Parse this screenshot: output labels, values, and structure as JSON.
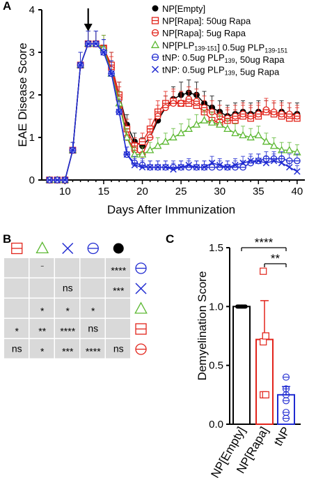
{
  "colors": {
    "black": "#000000",
    "red": "#e2231a",
    "green": "#5cb832",
    "blue": "#1f2ad1",
    "grey": "#d9d9d9"
  },
  "chart_data": [
    {
      "panel": "A",
      "type": "line",
      "xlabel": "Days After Immunization",
      "ylabel": "EAE Disease Score",
      "xlim": [
        7,
        41
      ],
      "ylim": [
        0,
        4
      ],
      "xticks": [
        10,
        15,
        20,
        25,
        30,
        35,
        40
      ],
      "yticks": [
        0,
        1,
        2,
        3,
        4
      ],
      "arrow_at_day": 13,
      "x": [
        8,
        9,
        10,
        11,
        12,
        13,
        14,
        15,
        16,
        17,
        18,
        19,
        20,
        21,
        22,
        23,
        24,
        25,
        26,
        27,
        28,
        29,
        30,
        31,
        32,
        33,
        34,
        35,
        36,
        37,
        38,
        39,
        40
      ],
      "series": [
        {
          "id": "s1",
          "color": "#000000",
          "marker": "dot",
          "legend": [
            {
              "t": "NP[Empty]"
            }
          ],
          "values": [
            0,
            0,
            0,
            0.7,
            2.7,
            3.2,
            3.2,
            3.0,
            2.7,
            2.0,
            1.3,
            0.9,
            0.8,
            1.0,
            1.4,
            1.7,
            1.9,
            2.0,
            2.05,
            2.0,
            1.8,
            1.7,
            1.6,
            1.5,
            1.55,
            1.6,
            1.55,
            1.6,
            1.6,
            1.55,
            1.6,
            1.55,
            1.55
          ]
        },
        {
          "id": "s2",
          "color": "#e2231a",
          "marker": "square",
          "legend": [
            {
              "t": "NP[Rapa]: 50ug Rapa"
            }
          ],
          "values": [
            0,
            0,
            0,
            0.7,
            2.7,
            3.2,
            3.2,
            3.1,
            2.7,
            2.0,
            1.2,
            0.8,
            0.9,
            1.2,
            1.6,
            1.8,
            1.85,
            1.8,
            1.8,
            1.75,
            1.6,
            1.4,
            1.35,
            1.4,
            1.4,
            1.5,
            1.45,
            1.5,
            1.6,
            1.55,
            1.5,
            1.45,
            1.45
          ]
        },
        {
          "id": "s3",
          "color": "#e2231a",
          "marker": "circle",
          "legend": [
            {
              "t": "NP[Rapa]: 5ug Rapa"
            }
          ],
          "values": [
            0,
            0,
            0,
            0.7,
            2.7,
            3.2,
            3.2,
            3.1,
            2.6,
            1.9,
            1.0,
            0.7,
            0.6,
            1.0,
            1.5,
            1.7,
            1.8,
            1.8,
            1.9,
            1.85,
            1.7,
            1.6,
            1.5,
            1.45,
            1.5,
            1.55,
            1.5,
            1.55,
            1.65,
            1.6,
            1.55,
            1.55,
            1.5
          ]
        },
        {
          "id": "s4",
          "color": "#5cb832",
          "marker": "triangle",
          "legend": [
            {
              "t": "NP[PLP"
            },
            {
              "t": "139-151",
              "sub": true
            },
            {
              "t": "] 0.5ug PLP"
            },
            {
              "t": "139-151",
              "sub": true
            }
          ],
          "values": [
            0,
            0,
            0,
            0.7,
            2.7,
            3.2,
            3.2,
            3.1,
            2.5,
            1.8,
            1.0,
            0.6,
            0.6,
            0.7,
            0.8,
            0.9,
            1.0,
            1.1,
            1.2,
            1.3,
            1.4,
            1.35,
            1.3,
            1.2,
            1.1,
            1.05,
            1.0,
            1.05,
            0.9,
            0.8,
            0.7,
            0.7,
            0.65
          ]
        },
        {
          "id": "s5",
          "color": "#1f2ad1",
          "marker": "circle",
          "legend": [
            {
              "t": "tNP: 0.5ug PLP"
            },
            {
              "t": "139",
              "sub": true
            },
            {
              "t": ", 50ug Rapa"
            }
          ],
          "values": [
            0,
            0,
            0,
            0.7,
            2.7,
            3.2,
            3.2,
            3.0,
            2.5,
            1.6,
            0.6,
            0.4,
            0.35,
            0.3,
            0.3,
            0.3,
            0.3,
            0.3,
            0.3,
            0.3,
            0.3,
            0.3,
            0.3,
            0.3,
            0.3,
            0.3,
            0.4,
            0.45,
            0.5,
            0.5,
            0.5,
            0.45,
            0.45
          ]
        },
        {
          "id": "s6",
          "color": "#1f2ad1",
          "marker": "x",
          "legend": [
            {
              "t": "tNP: 0.5ug PLP"
            },
            {
              "t": "139",
              "sub": true
            },
            {
              "t": ", 5ug Rapa"
            }
          ],
          "values": [
            0,
            0,
            0,
            0.7,
            2.7,
            3.2,
            3.2,
            3.0,
            2.5,
            1.6,
            0.6,
            0.35,
            0.3,
            0.3,
            0.3,
            0.3,
            0.25,
            0.3,
            0.35,
            0.3,
            0.3,
            0.4,
            0.35,
            0.3,
            0.35,
            0.4,
            0.45,
            0.45,
            0.4,
            0.45,
            0.4,
            0.3,
            0.2
          ]
        }
      ]
    },
    {
      "panel": "B",
      "type": "table",
      "header_markers": [
        "s2",
        "s4",
        "s6",
        "s5",
        "s1"
      ],
      "row_markers": [
        "s5",
        "s6",
        "s4",
        "s2",
        "s3"
      ],
      "cells": [
        [
          "",
          "",
          "",
          "",
          "****"
        ],
        [
          "",
          "",
          "ns",
          "",
          "***"
        ],
        [
          "",
          "*",
          "*",
          "*",
          ""
        ],
        [
          "*",
          "**",
          "****",
          "ns",
          ""
        ],
        [
          "ns",
          "*",
          "***",
          "****",
          "ns"
        ]
      ],
      "dash_cell": [
        0,
        1
      ]
    },
    {
      "panel": "C",
      "type": "bar",
      "ylabel": "Demyelination Score",
      "ylim": [
        0,
        1.5
      ],
      "yticks": [
        "0.0",
        "0.5",
        "1.0",
        "1.5"
      ],
      "categories": [
        "NP[Empty]",
        "NP[Rapa]",
        "tNP"
      ],
      "colors": [
        "#000000",
        "#e2231a",
        "#1f2ad1"
      ],
      "values": [
        1.0,
        0.72,
        0.25
      ],
      "errors": [
        0.0,
        0.33,
        0.07
      ],
      "points": [
        [
          1,
          1,
          1,
          1,
          1,
          1,
          1,
          1,
          1,
          1
        ],
        [
          1.3,
          0.75,
          0.7,
          0.75,
          0.25,
          0.25
        ],
        [
          0.4,
          0.3,
          0.25,
          0.2,
          0.1,
          0.05
        ]
      ],
      "significance": [
        {
          "from": 0,
          "to": 2,
          "label": "****"
        },
        {
          "from": 1,
          "to": 2,
          "label": "**"
        }
      ]
    }
  ]
}
